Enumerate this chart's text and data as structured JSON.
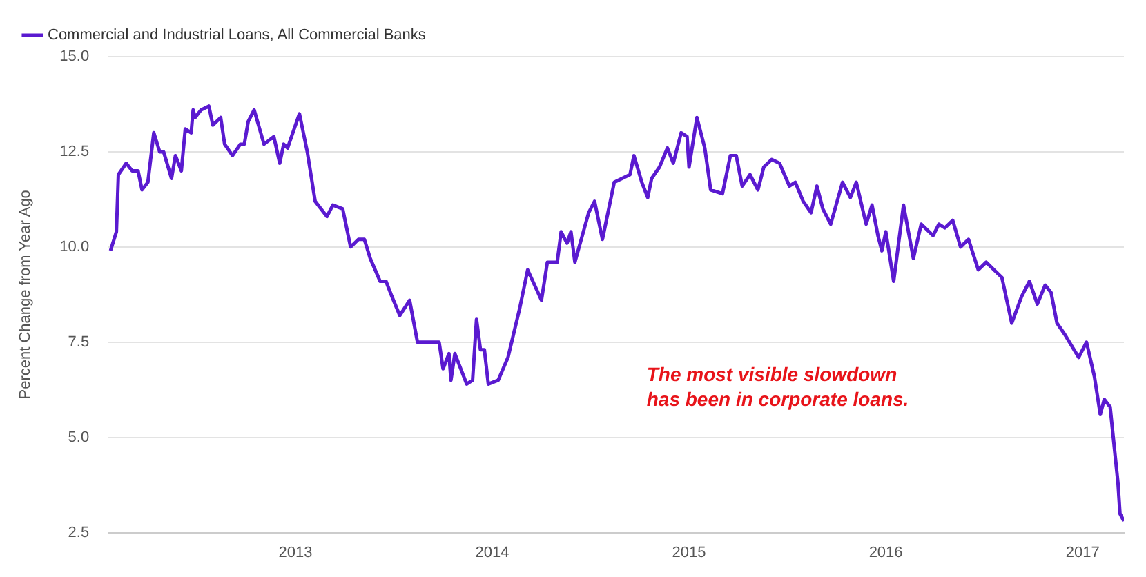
{
  "chart_data": {
    "type": "line",
    "ylabel": "Percent Change from Year Ago",
    "legend": "top left",
    "grid": "y",
    "marker": "none",
    "line_style": "solid",
    "annotations": [
      "The most visible slowdown\nhas been in corporate loans."
    ],
    "xlim": [
      2012.05,
      2017.21
    ],
    "xticks": [
      2013,
      2014,
      2015,
      2016,
      2017
    ],
    "ylim": [
      2.5,
      15
    ],
    "yticks": [
      {
        "value": 2.5,
        "label": "2.5"
      },
      {
        "value": 5,
        "label": "5.0"
      },
      {
        "value": 7.5,
        "label": "7.5"
      },
      {
        "value": 10,
        "label": "10.0"
      },
      {
        "value": 12.5,
        "label": "12.5"
      },
      {
        "value": 15,
        "label": "15.0"
      }
    ],
    "series": [
      {
        "name": "Commercial and Industrial Loans, All Commercial Banks",
        "color": "#5a1ad0",
        "x": [
          2012.06,
          2012.09,
          2012.1,
          2012.14,
          2012.17,
          2012.2,
          2012.22,
          2012.25,
          2012.28,
          2012.31,
          2012.33,
          2012.37,
          2012.39,
          2012.42,
          2012.44,
          2012.47,
          2012.48,
          2012.49,
          2012.52,
          2012.56,
          2012.58,
          2012.62,
          2012.64,
          2012.68,
          2012.72,
          2012.74,
          2012.76,
          2012.79,
          2012.84,
          2012.89,
          2012.92,
          2012.94,
          2012.96,
          2013.02,
          2013.06,
          2013.1,
          2013.13,
          2013.16,
          2013.19,
          2013.24,
          2013.28,
          2013.32,
          2013.35,
          2013.38,
          2013.43,
          2013.46,
          2013.49,
          2013.53,
          2013.58,
          2013.62,
          2013.73,
          2013.75,
          2013.78,
          2013.79,
          2013.81,
          2013.87,
          2013.9,
          2013.92,
          2013.94,
          2013.96,
          2013.98,
          2014.03,
          2014.08,
          2014.14,
          2014.18,
          2014.25,
          2014.28,
          2014.33,
          2014.35,
          2014.38,
          2014.4,
          2014.42,
          2014.49,
          2014.52,
          2014.56,
          2014.62,
          2014.66,
          2014.7,
          2014.72,
          2014.76,
          2014.79,
          2014.81,
          2014.85,
          2014.89,
          2014.92,
          2014.96,
          2014.99,
          2015.0,
          2015.04,
          2015.08,
          2015.11,
          2015.17,
          2015.21,
          2015.24,
          2015.27,
          2015.31,
          2015.35,
          2015.38,
          2015.42,
          2015.46,
          2015.51,
          2015.54,
          2015.58,
          2015.62,
          2015.65,
          2015.68,
          2015.72,
          2015.78,
          2015.82,
          2015.85,
          2015.9,
          2015.93,
          2015.96,
          2015.98,
          2016.0,
          2016.04,
          2016.09,
          2016.14,
          2016.18,
          2016.24,
          2016.27,
          2016.3,
          2016.34,
          2016.38,
          2016.42,
          2016.47,
          2016.51,
          2016.55,
          2016.59,
          2016.64,
          2016.69,
          2016.73,
          2016.77,
          2016.81,
          2016.84,
          2016.87,
          2016.91,
          2016.98,
          2017.02,
          2017.06,
          2017.09,
          2017.11,
          2017.14,
          2017.18,
          2017.19,
          2017.21
        ],
        "values": [
          9.9,
          10.4,
          11.9,
          12.2,
          12.0,
          12.0,
          11.5,
          11.7,
          13.0,
          12.5,
          12.5,
          11.8,
          12.4,
          12.0,
          13.1,
          13.0,
          13.6,
          13.4,
          13.6,
          13.7,
          13.2,
          13.4,
          12.7,
          12.4,
          12.7,
          12.7,
          13.3,
          13.6,
          12.7,
          12.9,
          12.2,
          12.7,
          12.6,
          13.5,
          12.5,
          11.2,
          11.0,
          10.8,
          11.1,
          11.0,
          10.0,
          10.2,
          10.2,
          9.7,
          9.1,
          9.1,
          8.7,
          8.2,
          8.6,
          7.5,
          7.5,
          6.8,
          7.2,
          6.5,
          7.2,
          6.4,
          6.5,
          8.1,
          7.3,
          7.3,
          6.4,
          6.5,
          7.1,
          8.4,
          9.4,
          8.6,
          9.6,
          9.6,
          10.4,
          10.1,
          10.4,
          9.6,
          10.9,
          11.2,
          10.2,
          11.7,
          11.8,
          11.9,
          12.4,
          11.7,
          11.3,
          11.8,
          12.1,
          12.6,
          12.2,
          13.0,
          12.9,
          12.1,
          13.4,
          12.6,
          11.5,
          11.4,
          12.4,
          12.4,
          11.6,
          11.9,
          11.5,
          12.1,
          12.3,
          12.2,
          11.6,
          11.7,
          11.2,
          10.9,
          11.6,
          11.0,
          10.6,
          11.7,
          11.3,
          11.7,
          10.6,
          11.1,
          10.3,
          9.9,
          10.4,
          9.1,
          11.1,
          9.7,
          10.6,
          10.3,
          10.6,
          10.5,
          10.7,
          10.0,
          10.2,
          9.4,
          9.6,
          9.4,
          9.2,
          8.0,
          8.7,
          9.1,
          8.5,
          9.0,
          8.8,
          8.0,
          7.7,
          7.1,
          7.5,
          6.6,
          5.6,
          6.0,
          5.8,
          3.8,
          3.0,
          2.8
        ]
      }
    ]
  }
}
